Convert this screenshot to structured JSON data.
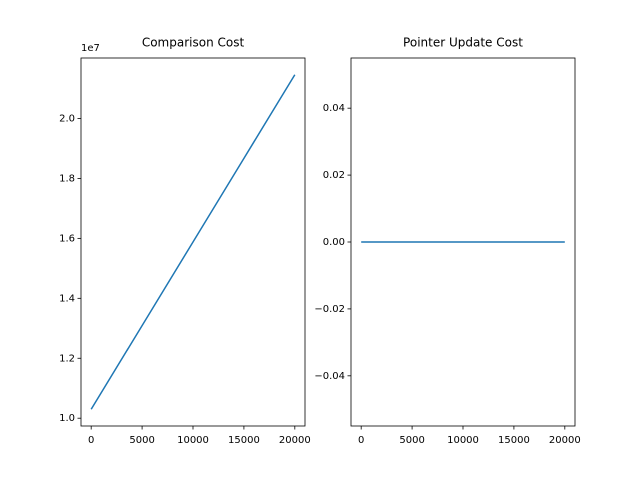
{
  "chart_data": [
    {
      "type": "line",
      "title": "Comparison Cost",
      "x": [
        0,
        5000,
        10000,
        15000,
        20000
      ],
      "series": [
        {
          "color": "#1f77b4",
          "values": [
            10300000,
            13090000,
            15880000,
            18670000,
            21460000
          ]
        }
      ],
      "xlim": [
        -1000,
        21000
      ],
      "xticks": [
        0,
        5000,
        10000,
        15000,
        20000
      ],
      "ylim": [
        9740000,
        22018000
      ],
      "yticks": [
        {
          "value": 10000000,
          "label": "1.0"
        },
        {
          "value": 12000000,
          "label": "1.2"
        },
        {
          "value": 14000000,
          "label": "1.4"
        },
        {
          "value": 16000000,
          "label": "1.6"
        },
        {
          "value": 18000000,
          "label": "1.8"
        },
        {
          "value": 20000000,
          "label": "2.0"
        }
      ],
      "y_offset_label": "1e7"
    },
    {
      "type": "line",
      "title": "Pointer Update Cost",
      "x": [
        0,
        5000,
        10000,
        15000,
        20000
      ],
      "series": [
        {
          "color": "#1f77b4",
          "values": [
            0,
            0,
            0,
            0,
            0
          ]
        }
      ],
      "xlim": [
        -1000,
        21000
      ],
      "xticks": [
        0,
        5000,
        10000,
        15000,
        20000
      ],
      "ylim": [
        -0.055,
        0.055
      ],
      "yticks": [
        {
          "value": -0.04,
          "label": "−0.04"
        },
        {
          "value": -0.02,
          "label": "−0.02"
        },
        {
          "value": 0,
          "label": "0.00"
        },
        0.02,
        0.04
      ]
    }
  ]
}
